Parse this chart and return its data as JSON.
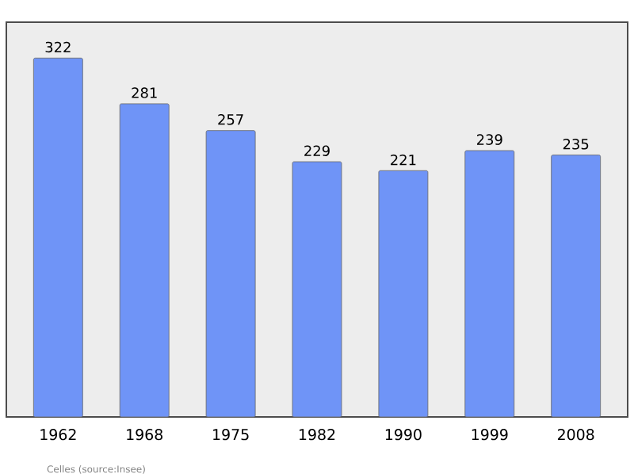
{
  "chart_data": {
    "type": "bar",
    "categories": [
      "1962",
      "1968",
      "1975",
      "1982",
      "1990",
      "1999",
      "2008"
    ],
    "values": [
      322,
      281,
      257,
      229,
      221,
      239,
      235
    ],
    "color": "#6f94f7",
    "data_labels": true,
    "annotations": [
      "Celles    (source:Insee)"
    ]
  }
}
